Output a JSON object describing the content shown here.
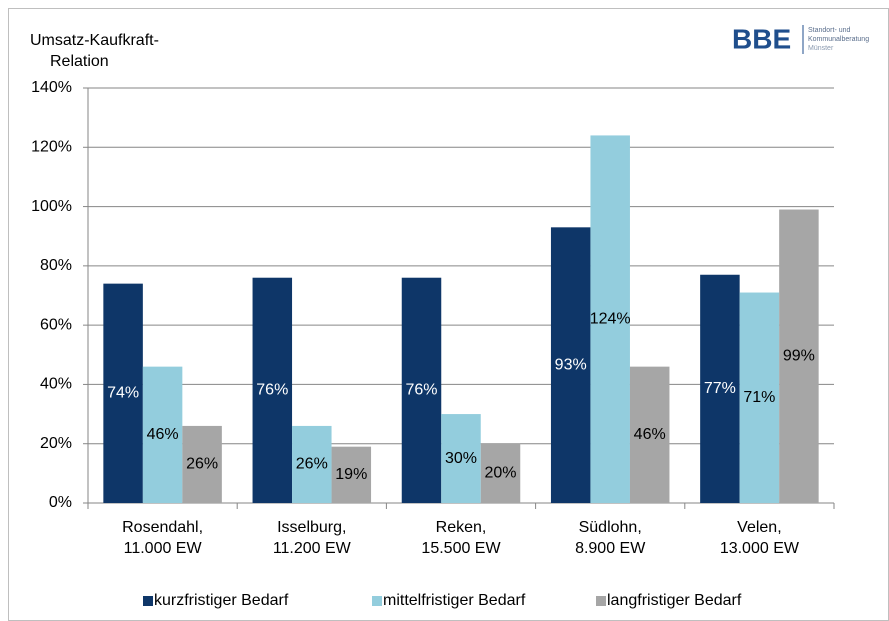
{
  "chart_data": {
    "type": "bar",
    "title": [
      "Umsatz-Kaufkraft-",
      "Relation"
    ],
    "categories": [
      [
        "Rosendahl,",
        "11.000 EW"
      ],
      [
        "Isselburg,",
        "11.200 EW"
      ],
      [
        "Reken,",
        "15.500 EW"
      ],
      [
        "Südlohn,",
        "8.900 EW"
      ],
      [
        "Velen,",
        "13.000 EW"
      ]
    ],
    "series": [
      {
        "name": "kurzfristiger Bedarf",
        "color": "#0e3668",
        "label_color": "#ffffff",
        "values": [
          74,
          76,
          76,
          93,
          77
        ],
        "value_labels": [
          "74%",
          "76%",
          "76%",
          "93%",
          "77%"
        ]
      },
      {
        "name": "mittelfristiger Bedarf",
        "color": "#93cddd",
        "label_color": "#000000",
        "values": [
          46,
          26,
          30,
          124,
          71
        ],
        "value_labels": [
          "46%",
          "26%",
          "30%",
          "124%",
          "71%"
        ]
      },
      {
        "name": "langfristiger Bedarf",
        "color": "#a6a6a6",
        "label_color": "#000000",
        "values": [
          26,
          19,
          20,
          46,
          99
        ],
        "value_labels": [
          "26%",
          "19%",
          "20%",
          "46%",
          "99%"
        ]
      }
    ],
    "ylim": [
      0,
      140
    ],
    "yticks": [
      {
        "value": 0,
        "label": "0%"
      },
      {
        "value": 20,
        "label": "20%"
      },
      {
        "value": 40,
        "label": "40%"
      },
      {
        "value": 60,
        "label": "60%"
      },
      {
        "value": 80,
        "label": "80%"
      },
      {
        "value": 100,
        "label": "100%"
      },
      {
        "value": 120,
        "label": "120%"
      },
      {
        "value": 140,
        "label": "140%"
      }
    ],
    "grid": true,
    "legend": "bottom"
  },
  "logo": {
    "brand": "BBE",
    "lines": [
      "Standort- und",
      "Kommunalberatung",
      "Münster"
    ]
  }
}
